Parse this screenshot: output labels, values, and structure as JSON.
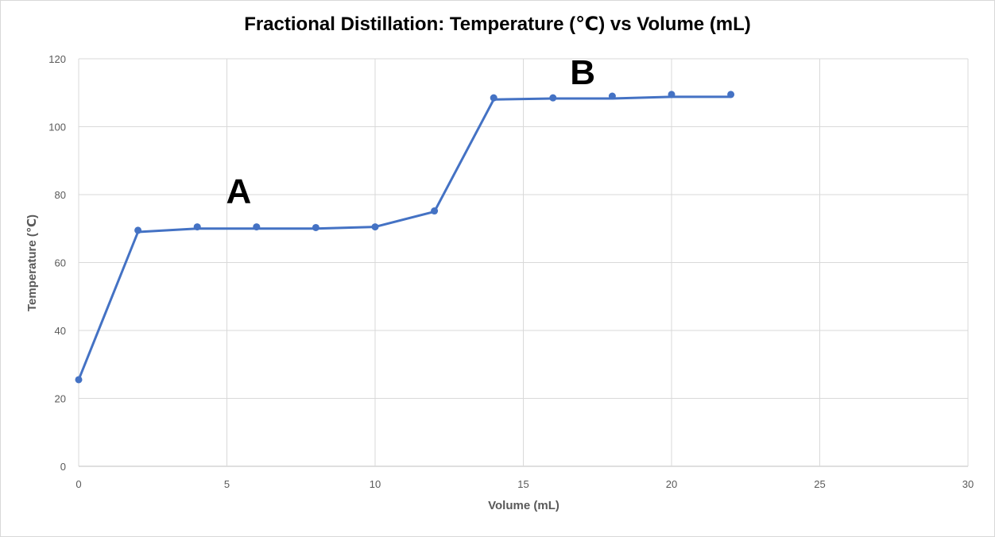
{
  "chart_data": {
    "type": "scatter",
    "title": "Fractional Distillation: Temperature (℃) vs Volume (mL)",
    "xlabel": "Volume (mL)",
    "ylabel": "Temperature (℃)",
    "xlim": [
      0,
      30
    ],
    "ylim": [
      0,
      120
    ],
    "xticks": [
      0,
      5,
      10,
      15,
      20,
      25,
      30
    ],
    "yticks": [
      0,
      20,
      40,
      60,
      80,
      100,
      120
    ],
    "grid": true,
    "legend": "none",
    "line_color": "#4472c4",
    "grid_color": "#d9d9d9",
    "series": [
      {
        "x": [
          0,
          2,
          4,
          6,
          8,
          10,
          12,
          14,
          16,
          18,
          20,
          22
        ],
        "y": [
          25.5,
          69.5,
          70.5,
          70.5,
          70.3,
          70.5,
          75.2,
          108.5,
          108.5,
          109.0,
          109.5,
          109.5
        ]
      }
    ],
    "trendline": [
      {
        "x": 0,
        "y": 25.5
      },
      {
        "x": 2,
        "y": 69.0
      },
      {
        "x": 4,
        "y": 70.0
      },
      {
        "x": 8,
        "y": 70.0
      },
      {
        "x": 10,
        "y": 70.5
      },
      {
        "x": 12,
        "y": 75.0
      },
      {
        "x": 14,
        "y": 108.0
      },
      {
        "x": 16,
        "y": 108.3
      },
      {
        "x": 18,
        "y": 108.3
      },
      {
        "x": 20,
        "y": 108.8
      },
      {
        "x": 22,
        "y": 108.8
      }
    ],
    "annotations": [
      {
        "text": "A",
        "x": 5.4,
        "y": 77.5
      },
      {
        "text": "B",
        "x": 17.0,
        "y": 112.5
      }
    ]
  }
}
